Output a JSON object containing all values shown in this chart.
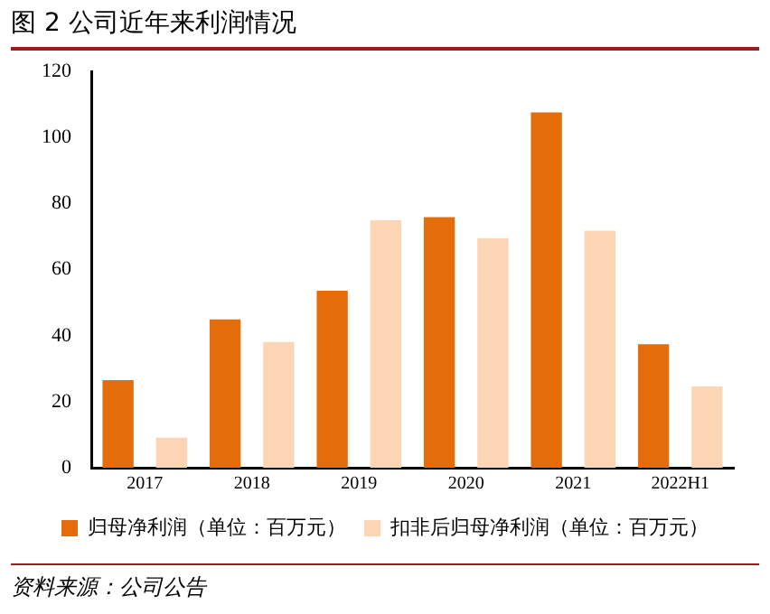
{
  "chart_data": {
    "type": "bar",
    "title": "图 2 公司近年来利润情况",
    "categories": [
      "2017",
      "2018",
      "2019",
      "2020",
      "2021",
      "2022H1"
    ],
    "series": [
      {
        "name": "归母净利润（单位：百万元）",
        "color": "#e46c0a",
        "values": [
          26.5,
          44.9,
          53.6,
          75.9,
          107.6,
          37.4
        ]
      },
      {
        "name": "扣非后归母净利润（单位：百万元）",
        "color": "#fcd5b5",
        "values": [
          9.1,
          38.1,
          74.9,
          69.5,
          71.8,
          24.6
        ]
      }
    ],
    "ylim": [
      0,
      120
    ],
    "yticks": [
      0,
      20,
      40,
      60,
      80,
      100,
      120
    ],
    "grid": false,
    "legend": "bottom",
    "annotations": [
      "资料来源：公司公告"
    ]
  }
}
